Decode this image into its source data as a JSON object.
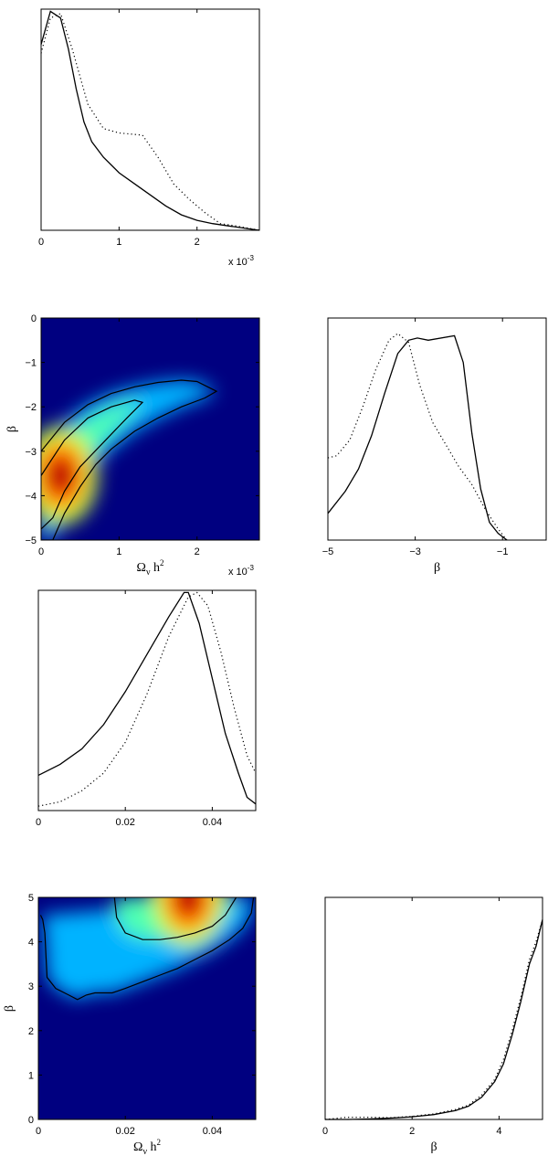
{
  "chart_data": [
    {
      "id": "p1",
      "type": "line",
      "xlim": [
        0,
        0.0028
      ],
      "ylim": [
        0,
        1
      ],
      "xticks": [
        0,
        0.001,
        0.002
      ],
      "xticklabels": [
        "0",
        "1",
        "2"
      ],
      "yticks": [],
      "yticklabels": [],
      "xlabel": "",
      "ylabel": "",
      "exponent": {
        "base": "x 10",
        "power": "-3"
      },
      "series": [
        {
          "style": "solid",
          "x": [
            0,
            0.00012,
            0.00025,
            0.00035,
            0.00045,
            0.00055,
            0.00065,
            0.0008,
            0.001,
            0.0012,
            0.0014,
            0.0016,
            0.0018,
            0.002,
            0.0022,
            0.0025,
            0.0028
          ],
          "y": [
            0.84,
            0.99,
            0.96,
            0.82,
            0.64,
            0.49,
            0.4,
            0.33,
            0.26,
            0.21,
            0.16,
            0.11,
            0.07,
            0.045,
            0.03,
            0.015,
            0.0
          ]
        },
        {
          "style": "dotted",
          "x": [
            0,
            0.00012,
            0.00025,
            0.0004,
            0.0006,
            0.0008,
            0.001,
            0.0013,
            0.0015,
            0.0017,
            0.0019,
            0.0021,
            0.0023,
            0.0025,
            0.0028
          ],
          "y": [
            0.8,
            0.96,
            0.98,
            0.82,
            0.57,
            0.46,
            0.44,
            0.43,
            0.33,
            0.21,
            0.14,
            0.08,
            0.03,
            0.02,
            0.0
          ]
        }
      ]
    },
    {
      "id": "p2",
      "type": "heatmap",
      "xlim": [
        0,
        0.0028
      ],
      "ylim": [
        -5,
        0
      ],
      "xticks": [
        0,
        0.001,
        0.002
      ],
      "xticklabels": [
        "0",
        "1",
        "2"
      ],
      "yticks": [
        0,
        -1,
        -2,
        -3,
        -4,
        -5
      ],
      "yticklabels": [
        "0",
        "−1",
        "−2",
        "−3",
        "−4",
        "−5"
      ],
      "xlabel": "Ω",
      "xlabel_sub": "ν",
      "xlabel_rest": " h",
      "xlabel_sup": "2",
      "ylabel": "β",
      "exponent": {
        "base": "x 10",
        "power": "-3"
      },
      "peak": {
        "x": 0.00025,
        "y": -3.55
      },
      "contours": [
        {
          "x": [
            0,
            0.0003,
            0.0006,
            0.0009,
            0.0012,
            0.0015,
            0.0018,
            0.002,
            0.00225,
            0.0021,
            0.0018,
            0.0015,
            0.0012,
            0.0009,
            0.0007,
            0.0005,
            0.0003,
            0.00015,
            0
          ],
          "y": [
            -3.0,
            -2.35,
            -1.95,
            -1.7,
            -1.55,
            -1.45,
            -1.4,
            -1.43,
            -1.65,
            -1.8,
            -2.0,
            -2.25,
            -2.55,
            -2.95,
            -3.3,
            -3.8,
            -4.4,
            -5.0,
            -5.0
          ]
        },
        {
          "x": [
            0,
            0.0003,
            0.0006,
            0.0009,
            0.0012,
            0.0013,
            0.0011,
            0.0008,
            0.0005,
            0.0003,
            0.00015,
            0
          ],
          "y": [
            -3.55,
            -2.75,
            -2.25,
            -2.0,
            -1.85,
            -1.9,
            -2.25,
            -2.8,
            -3.35,
            -3.9,
            -4.5,
            -4.75
          ]
        }
      ]
    },
    {
      "id": "p3",
      "type": "line",
      "xlim": [
        -5,
        0
      ],
      "ylim": [
        0,
        1
      ],
      "xticks": [
        -5,
        -3,
        -1
      ],
      "xticklabels": [
        "−5",
        "−3",
        "−1"
      ],
      "yticks": [],
      "yticklabels": [],
      "xlabel": "β",
      "ylabel": "",
      "series": [
        {
          "style": "solid",
          "x": [
            -5,
            -4.6,
            -4.3,
            -4.0,
            -3.7,
            -3.4,
            -3.15,
            -2.95,
            -2.7,
            -2.1,
            -1.9,
            -1.7,
            -1.5,
            -1.3,
            -1.1,
            -0.9
          ],
          "y": [
            0.12,
            0.22,
            0.32,
            0.47,
            0.66,
            0.84,
            0.9,
            0.91,
            0.9,
            0.92,
            0.8,
            0.48,
            0.23,
            0.08,
            0.03,
            0.0
          ]
        },
        {
          "style": "dotted",
          "x": [
            -5,
            -4.8,
            -4.5,
            -4.2,
            -3.9,
            -3.6,
            -3.4,
            -3.15,
            -2.9,
            -2.6,
            -2.3,
            -2.0,
            -1.7,
            -1.4,
            -1.1,
            -0.9
          ],
          "y": [
            0.37,
            0.38,
            0.45,
            0.6,
            0.77,
            0.9,
            0.93,
            0.89,
            0.7,
            0.53,
            0.43,
            0.33,
            0.25,
            0.14,
            0.05,
            0.0
          ]
        }
      ]
    },
    {
      "id": "p4",
      "type": "line",
      "xlim": [
        0,
        0.05
      ],
      "ylim": [
        0,
        1
      ],
      "xticks": [
        0,
        0.02,
        0.04
      ],
      "xticklabels": [
        "0",
        "0.02",
        "0.04"
      ],
      "yticks": [],
      "yticklabels": [],
      "xlabel": "",
      "ylabel": "",
      "series": [
        {
          "style": "solid",
          "x": [
            0,
            0.005,
            0.01,
            0.015,
            0.02,
            0.025,
            0.03,
            0.0335,
            0.0345,
            0.037,
            0.04,
            0.043,
            0.046,
            0.048,
            0.05
          ],
          "y": [
            0.16,
            0.21,
            0.28,
            0.39,
            0.54,
            0.71,
            0.88,
            0.99,
            0.99,
            0.85,
            0.6,
            0.35,
            0.17,
            0.06,
            0.03
          ]
        },
        {
          "style": "dotted",
          "x": [
            0,
            0.005,
            0.01,
            0.015,
            0.02,
            0.025,
            0.03,
            0.0345,
            0.0365,
            0.039,
            0.042,
            0.045,
            0.048,
            0.05
          ],
          "y": [
            0.02,
            0.04,
            0.09,
            0.17,
            0.31,
            0.53,
            0.79,
            0.97,
            0.99,
            0.93,
            0.72,
            0.47,
            0.25,
            0.17
          ]
        }
      ]
    },
    {
      "id": "p5",
      "type": "heatmap",
      "xlim": [
        0,
        0.05
      ],
      "ylim": [
        0,
        5
      ],
      "xticks": [
        0,
        0.02,
        0.04
      ],
      "xticklabels": [
        "0",
        "0.02",
        "0.04"
      ],
      "yticks": [
        0,
        1,
        2,
        3,
        4,
        5
      ],
      "yticklabels": [
        "0",
        "1",
        "2",
        "3",
        "4",
        "5"
      ],
      "xlabel": "Ω",
      "xlabel_sub": "ν",
      "xlabel_rest": " h",
      "xlabel_sup": "2",
      "ylabel": "β",
      "peak": {
        "x": 0.0345,
        "y": 5.0
      },
      "contours": [
        {
          "x": [
            0.0005,
            0.001,
            0.0015,
            0.002,
            0.004,
            0.007,
            0.009,
            0.011,
            0.013,
            0.017,
            0.02,
            0.024,
            0.028,
            0.032,
            0.036,
            0.04,
            0.044,
            0.047,
            0.049,
            0.0495
          ],
          "y": [
            4.6,
            4.5,
            4.2,
            3.2,
            2.95,
            2.8,
            2.7,
            2.8,
            2.85,
            2.85,
            2.95,
            3.1,
            3.25,
            3.4,
            3.6,
            3.8,
            4.05,
            4.3,
            4.65,
            5.0
          ]
        },
        {
          "x": [
            0.0175,
            0.018,
            0.02,
            0.024,
            0.028,
            0.032,
            0.036,
            0.04,
            0.043,
            0.0455
          ],
          "y": [
            5.0,
            4.55,
            4.2,
            4.05,
            4.05,
            4.1,
            4.2,
            4.35,
            4.6,
            5.0
          ]
        }
      ]
    },
    {
      "id": "p6",
      "type": "line",
      "xlim": [
        0,
        5
      ],
      "ylim": [
        0,
        1
      ],
      "xticks": [
        0,
        2,
        4
      ],
      "xticklabels": [
        "0",
        "2",
        "4"
      ],
      "yticks": [],
      "yticklabels": [],
      "xlabel": "β",
      "ylabel": "",
      "series": [
        {
          "style": "solid",
          "x": [
            0,
            0.5,
            1.0,
            1.5,
            2.0,
            2.5,
            3.0,
            3.3,
            3.6,
            3.9,
            4.1,
            4.3,
            4.5,
            4.7,
            4.85,
            5.0
          ],
          "y": [
            0.0,
            0.0,
            0.002,
            0.006,
            0.012,
            0.022,
            0.04,
            0.06,
            0.1,
            0.17,
            0.25,
            0.38,
            0.53,
            0.7,
            0.78,
            0.9
          ]
        },
        {
          "style": "dotted",
          "x": [
            0,
            0.5,
            1.0,
            1.5,
            2.0,
            2.5,
            3.0,
            3.3,
            3.6,
            3.9,
            4.1,
            4.3,
            4.5,
            4.7,
            4.85,
            5.0
          ],
          "y": [
            0.0,
            0.01,
            0.01,
            0.008,
            0.014,
            0.025,
            0.045,
            0.065,
            0.11,
            0.18,
            0.27,
            0.4,
            0.55,
            0.72,
            0.8,
            0.9
          ]
        }
      ]
    }
  ]
}
